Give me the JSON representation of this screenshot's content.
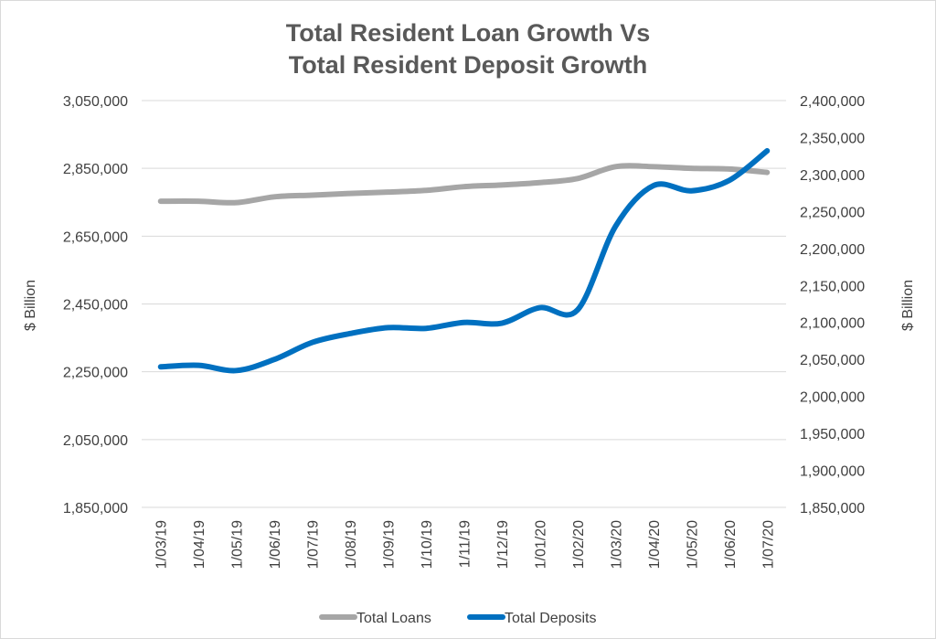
{
  "chart_data": {
    "type": "line",
    "title_line1": "Total Resident Loan Growth Vs",
    "title_line2": "Total Resident Deposit Growth",
    "ylabel_left": "$ Billion",
    "ylabel_right": "$ Billion",
    "categories": [
      "1/03/19",
      "1/04/19",
      "1/05/19",
      "1/06/19",
      "1/07/19",
      "1/08/19",
      "1/09/19",
      "1/10/19",
      "1/11/19",
      "1/12/19",
      "1/01/20",
      "1/02/20",
      "1/03/20",
      "1/04/20",
      "1/05/20",
      "1/06/20",
      "1/07/20"
    ],
    "ylim_left": [
      1850000,
      3050000
    ],
    "yticks_left": [
      1850000,
      2050000,
      2250000,
      2450000,
      2650000,
      2850000,
      3050000
    ],
    "ytick_labels_left": [
      "1,850,000",
      "2,050,000",
      "2,250,000",
      "2,450,000",
      "2,650,000",
      "2,850,000",
      "3,050,000"
    ],
    "ylim_right": [
      1850000,
      2400000
    ],
    "yticks_right": [
      1850000,
      1900000,
      1950000,
      2000000,
      2050000,
      2100000,
      2150000,
      2200000,
      2250000,
      2300000,
      2350000,
      2400000
    ],
    "ytick_labels_right": [
      "1,850,000",
      "1,900,000",
      "1,950,000",
      "2,000,000",
      "2,050,000",
      "2,100,000",
      "2,150,000",
      "2,200,000",
      "2,250,000",
      "2,300,000",
      "2,350,000",
      "2,400,000"
    ],
    "grid": true,
    "legend_position": "bottom",
    "series": [
      {
        "name": "Total Loans",
        "axis": "left",
        "color": "#a6a6a6",
        "values": [
          2753000,
          2753000,
          2749000,
          2766000,
          2771000,
          2776000,
          2780000,
          2785000,
          2796000,
          2801000,
          2808000,
          2820000,
          2855000,
          2855000,
          2850000,
          2848000,
          2838000
        ]
      },
      {
        "name": "Total Deposits",
        "axis": "right",
        "color": "#0070c0",
        "values": [
          2040000,
          2042000,
          2035000,
          2050000,
          2073000,
          2085000,
          2093000,
          2092000,
          2100000,
          2099000,
          2120000,
          2117000,
          2230000,
          2285000,
          2278000,
          2292000,
          2332000
        ]
      }
    ]
  }
}
